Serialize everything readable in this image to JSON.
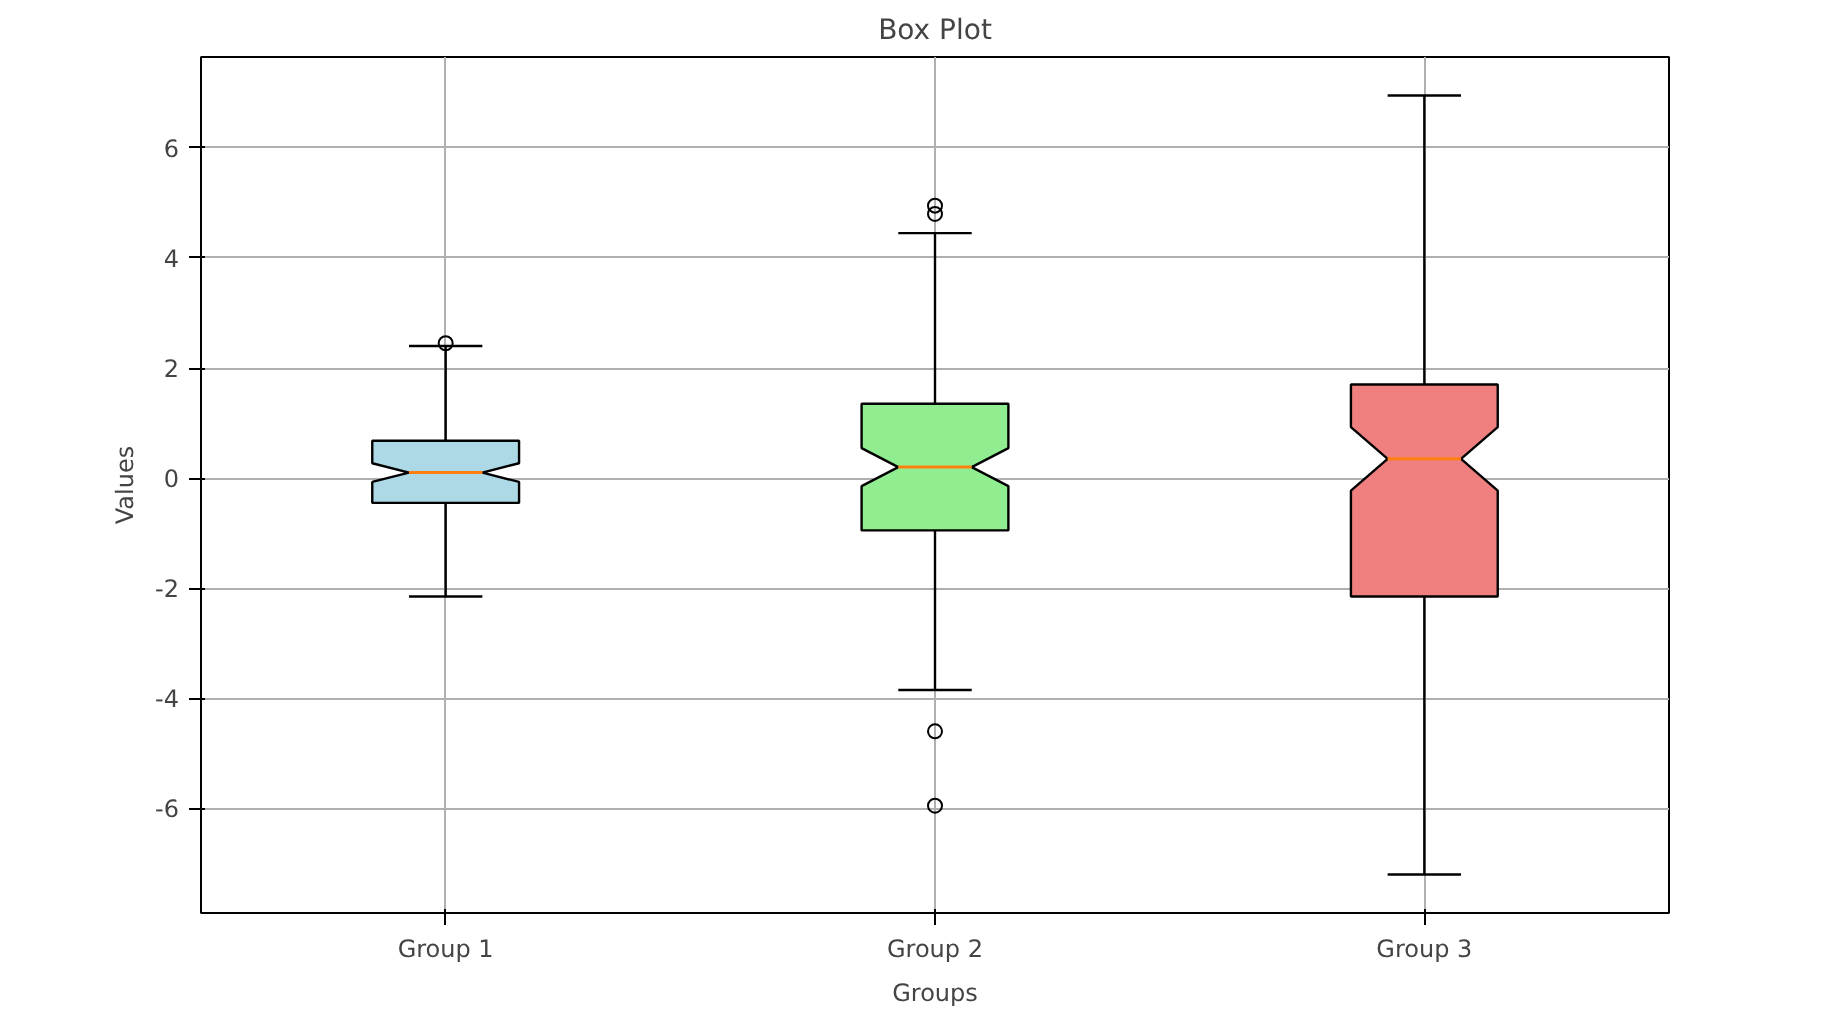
{
  "chart_data": {
    "type": "box",
    "title": "Box Plot",
    "xlabel": "Groups",
    "ylabel": "Values",
    "categories": [
      "Group 1",
      "Group 2",
      "Group 3"
    ],
    "colors": [
      "#add8e6",
      "#90ee90",
      "#f08080"
    ],
    "boxes": [
      {
        "low": -2.15,
        "q1": -0.45,
        "median": 0.1,
        "q3": 0.68,
        "high": 2.4,
        "outliers": [
          2.45
        ]
      },
      {
        "low": -3.85,
        "q1": -0.95,
        "median": 0.2,
        "q3": 1.35,
        "high": 4.45,
        "outliers": [
          4.95,
          4.8,
          -4.6,
          -5.95
        ]
      },
      {
        "low": -7.2,
        "q1": -2.15,
        "median": 0.35,
        "q3": 1.7,
        "high": 6.95
      }
    ],
    "ylim": [
      -7.9,
      7.65
    ],
    "yticks": [
      -6,
      -4,
      -2,
      0,
      2,
      4,
      6
    ],
    "grid": true
  }
}
